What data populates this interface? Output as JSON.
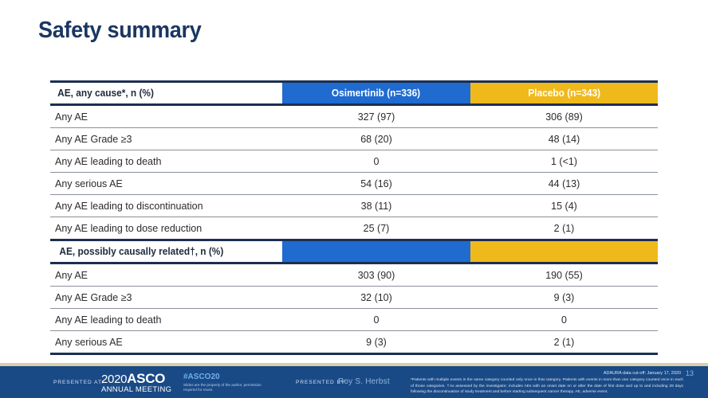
{
  "slide": {
    "title": "Safety summary"
  },
  "table": {
    "columns": [
      "AE, any cause*, n (%)",
      "Osimertinib (n=336)",
      "Placebo (n=343)"
    ],
    "colors": {
      "osimertinib": "#1f6bd0",
      "placebo": "#f0b91b",
      "border": "#1b2f52"
    },
    "section1": {
      "header": "AE, any cause*, n (%)",
      "rows": [
        {
          "label": "Any AE",
          "osimertinib": "327 (97)",
          "placebo": "306 (89)"
        },
        {
          "label": "Any AE Grade ≥3",
          "osimertinib": "68 (20)",
          "placebo": "48 (14)"
        },
        {
          "label": "Any AE leading to death",
          "osimertinib": "0",
          "placebo": "1 (<1)"
        },
        {
          "label": "Any serious AE",
          "osimertinib": "54 (16)",
          "placebo": "44 (13)"
        },
        {
          "label": "Any AE leading to discontinuation",
          "osimertinib": "38 (11)",
          "placebo": "15 (4)"
        },
        {
          "label": "Any AE leading to dose reduction",
          "osimertinib": "25 (7)",
          "placebo": "2 (1)"
        }
      ]
    },
    "section2": {
      "header": "AE, possibly causally related†, n (%)",
      "rows": [
        {
          "label": "Any AE",
          "osimertinib": "303 (90)",
          "placebo": "190 (55)"
        },
        {
          "label": "Any AE Grade ≥3",
          "osimertinib": "32 (10)",
          "placebo": "9 (3)"
        },
        {
          "label": "Any AE leading to death",
          "osimertinib": "0",
          "placebo": "0"
        },
        {
          "label": "Any serious AE",
          "osimertinib": "9 (3)",
          "placebo": "2 (1)"
        }
      ]
    }
  },
  "footer": {
    "presented_at": "PRESENTED AT:",
    "meeting_year": "2020",
    "meeting_org": "ASCO",
    "meeting_name": "ANNUAL MEETING",
    "hashtag": "#ASCO20",
    "rights": "Slides are the property of the author, permission required for reuse.",
    "presented_by": "PRESENTED BY:",
    "presenter": "Roy S. Herbst",
    "data_cutoff": "ADAURA data cut-off: January 17, 2020",
    "page_number": "13",
    "footnote": "*Patients with multiple events in the same category counted only once in that category. Patients with events in more than one category counted once in each of those categories. †As assessed by the investigator; includes AEs with an onset date on or after the date of first dose and up to and including 28 days following the discontinuation of study treatment and before starting subsequent cancer therapy. AE, adverse event."
  }
}
